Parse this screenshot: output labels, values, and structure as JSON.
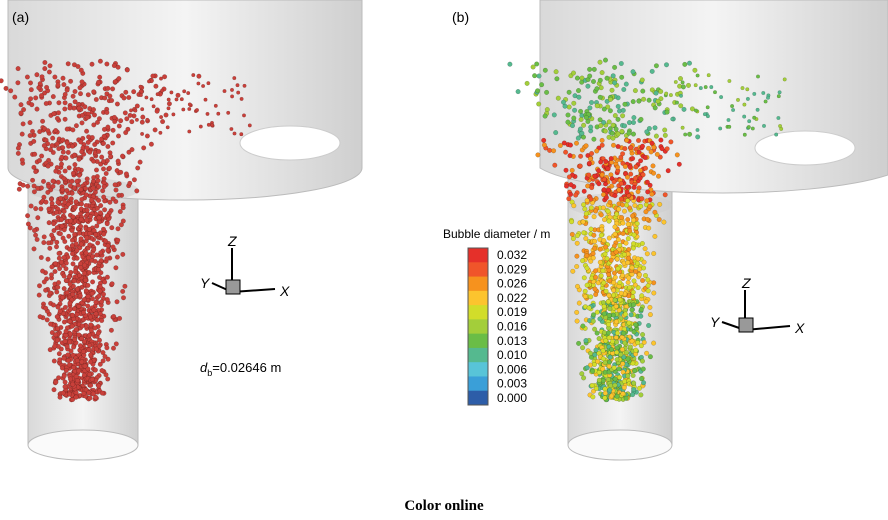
{
  "panels": [
    {
      "label": "(a)",
      "axes": {
        "z": "Z",
        "y": "Y",
        "x": "X"
      },
      "annotation": {
        "symbol": "d",
        "subscript": "b",
        "text": "=0.02646 m"
      }
    },
    {
      "label": "(b)",
      "axes": {
        "z": "Z",
        "y": "Y",
        "x": "X"
      },
      "colorbar": {
        "title": "Bubble diameter / m",
        "labels": [
          "0.032",
          "0.029",
          "0.026",
          "0.022",
          "0.019",
          "0.016",
          "0.013",
          "0.010",
          "0.006",
          "0.003",
          "0.000"
        ]
      }
    }
  ],
  "caption": "Color online"
}
